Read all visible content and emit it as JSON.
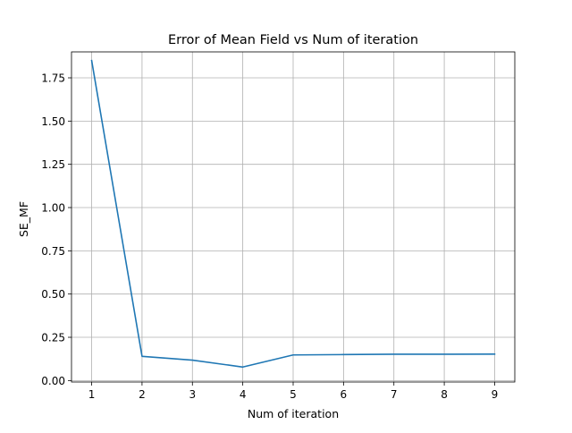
{
  "chart_data": {
    "type": "line",
    "title": "Error of Mean Field vs Num of iteration",
    "xlabel": "Num of iteration",
    "ylabel": "SE_MF",
    "grid": true,
    "xlim": [
      0.6,
      9.4
    ],
    "ylim": [
      -0.0085,
      1.9
    ],
    "xticks": [
      1,
      2,
      3,
      4,
      5,
      6,
      7,
      8,
      9
    ],
    "yticks": [
      0.0,
      0.25,
      0.5,
      0.75,
      1.0,
      1.25,
      1.5,
      1.75
    ],
    "ytick_labels": [
      "0.00",
      "0.25",
      "0.50",
      "0.75",
      "1.00",
      "1.25",
      "1.50",
      "1.75"
    ],
    "series": [
      {
        "color": "#1f77b4",
        "x": [
          1,
          2,
          3,
          4,
          5,
          6,
          7,
          8,
          9
        ],
        "values": [
          1.85,
          0.14,
          0.118,
          0.078,
          0.148,
          0.15,
          0.152,
          0.152,
          0.153
        ]
      }
    ]
  }
}
